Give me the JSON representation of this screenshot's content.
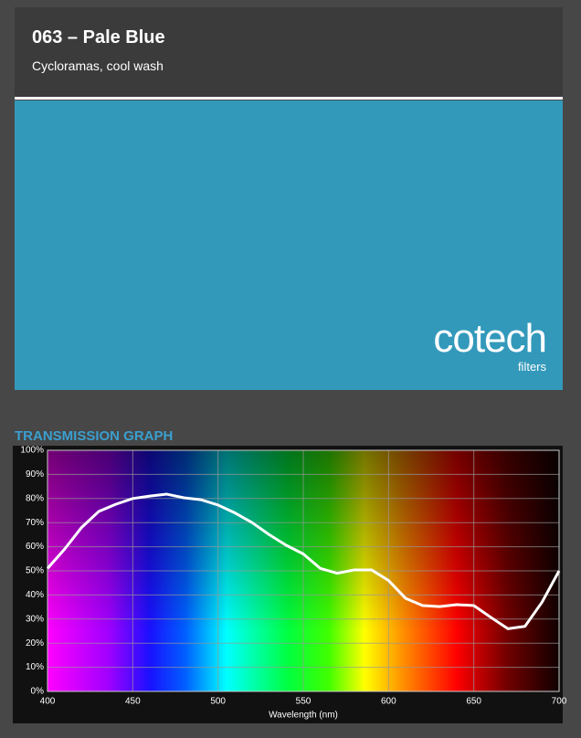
{
  "header": {
    "title": "063 – Pale Blue",
    "subtitle": "Cycloramas, cool wash"
  },
  "swatch": {
    "color": "#3399bb",
    "logo": "cotech",
    "logo_sub": "filters"
  },
  "chart_data": {
    "type": "line",
    "title": "TRANSMISSION GRAPH",
    "x_label": "Wavelength (nm)",
    "x": [
      400,
      410,
      420,
      430,
      440,
      450,
      460,
      470,
      480,
      490,
      500,
      510,
      520,
      530,
      540,
      550,
      560,
      570,
      580,
      590,
      600,
      610,
      620,
      630,
      640,
      650,
      660,
      670,
      680,
      690,
      700
    ],
    "series": [
      {
        "color": "#ffffff",
        "values": [
          51,
          59,
          68,
          74.6,
          77.6,
          80,
          81,
          81.8,
          80.3,
          79.5,
          77.3,
          74,
          70,
          65,
          60.6,
          57,
          51,
          49,
          50.4,
          50.4,
          46,
          38.6,
          35.6,
          35.2,
          36,
          35.6,
          30.7,
          26,
          27,
          37,
          50
        ]
      }
    ],
    "xlim": [
      400,
      700
    ],
    "xticks": [
      400,
      450,
      500,
      550,
      600,
      650,
      700
    ],
    "ylim": [
      0,
      100
    ],
    "yticks": [
      {
        "value": 0,
        "label": "0%"
      },
      {
        "value": 10,
        "label": "10%"
      },
      {
        "value": 20,
        "label": "20%"
      },
      {
        "value": 30,
        "label": "30%"
      },
      {
        "value": 40,
        "label": "40%"
      },
      {
        "value": 50,
        "label": "50%"
      },
      {
        "value": 60,
        "label": "60%"
      },
      {
        "value": 70,
        "label": "70%"
      },
      {
        "value": 80,
        "label": "80%"
      },
      {
        "value": 90,
        "label": "90%"
      },
      {
        "value": 100,
        "label": "100%"
      }
    ],
    "grid": true
  }
}
